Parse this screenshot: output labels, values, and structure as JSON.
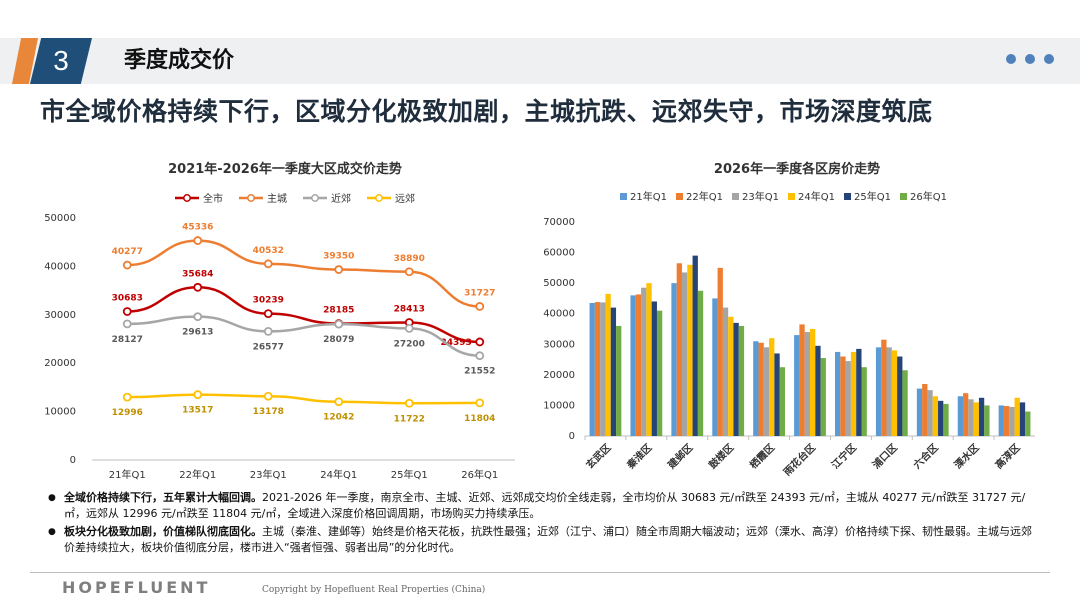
{
  "header": {
    "section_number": "3",
    "section_title": "季度成交价"
  },
  "headline": "市全域价格持续下行，区域分化极致加剧，主城抗跌、远郊失守，市场深度筑底",
  "colors": {
    "navy": "#1f4e79",
    "orange_accent": "#e8873a",
    "dot": "#4f81bd"
  },
  "chart_data": [
    {
      "type": "line",
      "title": "2021年-2026年一季度大区成交价走势",
      "categories": [
        "21年Q1",
        "22年Q1",
        "23年Q1",
        "24年Q1",
        "25年Q1",
        "26年Q1"
      ],
      "ylim": [
        0,
        50000
      ],
      "yticks": [
        "0",
        "10000",
        "20000",
        "30000",
        "40000",
        "50000"
      ],
      "series": [
        {
          "name": "全市",
          "color": "#c00000",
          "values": [
            30683,
            35684,
            30239,
            28185,
            28413,
            24393
          ],
          "labels": [
            "30683",
            "35684",
            "30239",
            "28185",
            "28413",
            "24393"
          ]
        },
        {
          "name": "主城",
          "color": "#ed7d31",
          "values": [
            40277,
            45336,
            40532,
            39350,
            38890,
            31727
          ],
          "labels": [
            "40277",
            "45336",
            "40532",
            "39350",
            "38890",
            "31727"
          ]
        },
        {
          "name": "近郊",
          "color": "#a6a6a6",
          "values": [
            28127,
            29613,
            26577,
            28079,
            27200,
            21552
          ],
          "labels": [
            "28127",
            "29613",
            "26577",
            "28079",
            "27200",
            "21552"
          ]
        },
        {
          "name": "远郊",
          "color": "#ffc000",
          "values": [
            12996,
            13517,
            13178,
            12042,
            11722,
            11804
          ],
          "labels": [
            "12996",
            "13517",
            "13178",
            "12042",
            "11722",
            "11804"
          ]
        }
      ]
    },
    {
      "type": "bar",
      "title": "2026年一季度各区房价走势",
      "categories": [
        "玄武区",
        "秦淮区",
        "建邺区",
        "鼓楼区",
        "栖霞区",
        "雨花台区",
        "江宁区",
        "浦口区",
        "六合区",
        "溧水区",
        "高淳区"
      ],
      "ylim": [
        0,
        70000
      ],
      "yticks": [
        "0",
        "10000",
        "20000",
        "30000",
        "40000",
        "50000",
        "60000",
        "70000"
      ],
      "series": [
        {
          "name": "21年Q1",
          "color": "#5b9bd5",
          "values": [
            43500,
            46000,
            50000,
            45000,
            31000,
            33000,
            27500,
            29000,
            15500,
            13000,
            10000
          ]
        },
        {
          "name": "22年Q1",
          "color": "#ed7d31",
          "values": [
            43800,
            46300,
            56500,
            55000,
            30500,
            36500,
            26000,
            31500,
            17000,
            14000,
            9800
          ]
        },
        {
          "name": "23年Q1",
          "color": "#a5a5a5",
          "values": [
            43700,
            48500,
            53500,
            42000,
            29000,
            34000,
            24500,
            29000,
            15000,
            12000,
            9500
          ]
        },
        {
          "name": "24年Q1",
          "color": "#ffc000",
          "values": [
            46500,
            50000,
            56000,
            39000,
            32000,
            35000,
            27500,
            28000,
            13000,
            11000,
            12500
          ]
        },
        {
          "name": "25年Q1",
          "color": "#264478",
          "values": [
            42000,
            44000,
            59000,
            37000,
            27000,
            29500,
            28500,
            26000,
            11500,
            12500,
            11000
          ]
        },
        {
          "name": "26年Q1",
          "color": "#70ad47",
          "values": [
            36000,
            41000,
            47500,
            36000,
            22500,
            25500,
            22500,
            21500,
            10500,
            10000,
            8000
          ]
        }
      ]
    }
  ],
  "bullets": [
    {
      "bold": "全域价格持续下行，五年累计大幅回调。",
      "text": "2021-2026 年一季度，南京全市、主城、近郊、远郊成交均价全线走弱，全市均价从 30683 元/㎡跌至 24393 元/㎡，主城从 40277 元/㎡跌至 31727 元/㎡，远郊从 12996 元/㎡跌至 11804 元/㎡，全域进入深度价格回调周期，市场购买力持续承压。"
    },
    {
      "bold": "板块分化极致加剧，价值梯队彻底固化。",
      "text": "主城（秦淮、建邺等）始终是价格天花板，抗跌性最强；近郊（江宁、浦口）随全市周期大幅波动；远郊（溧水、高淳）价格持续下探、韧性最弱。主城与远郊价差持续拉大，板块价值彻底分层，楼市进入“强者恒强、弱者出局”的分化时代。"
    }
  ],
  "footer": {
    "logo": "HOPEFLUENT",
    "copyright": "Copyright by Hopefluent Real Properties (China)"
  }
}
